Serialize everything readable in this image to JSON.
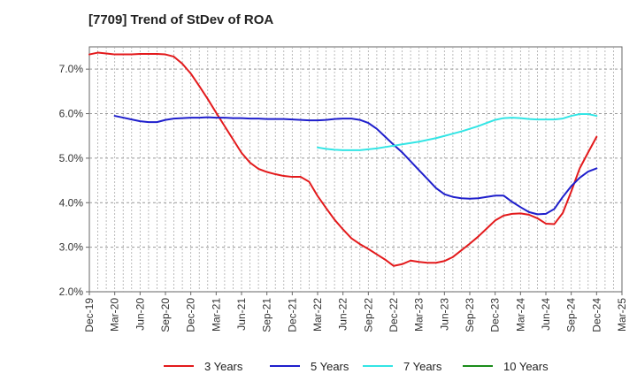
{
  "chart_data": {
    "type": "line",
    "title": "[7709]  Trend of StDev of ROA",
    "xlabel": "",
    "ylabel": "",
    "ylim": [
      2.0,
      7.5
    ],
    "y_ticks": [
      "2.0%",
      "3.0%",
      "4.0%",
      "5.0%",
      "6.0%",
      "7.0%"
    ],
    "x_ticks": [
      "Dec-19",
      "Mar-20",
      "Jun-20",
      "Sep-20",
      "Dec-20",
      "Mar-21",
      "Jun-21",
      "Sep-21",
      "Dec-21",
      "Mar-22",
      "Jun-22",
      "Sep-22",
      "Dec-22",
      "Mar-23",
      "Jun-23",
      "Sep-23",
      "Dec-23",
      "Mar-24",
      "Jun-24",
      "Sep-24",
      "Dec-24",
      "Mar-25"
    ],
    "grid": "vertical dashed and horizontal dashed",
    "legend": "bottom",
    "series": [
      {
        "name": "3 Years",
        "color": "#e31a1c",
        "x": [
          "Dec-19",
          "Jan-20",
          "Feb-20",
          "Mar-20",
          "Apr-20",
          "May-20",
          "Jun-20",
          "Jul-20",
          "Aug-20",
          "Sep-20",
          "Oct-20",
          "Nov-20",
          "Dec-20",
          "Jan-21",
          "Feb-21",
          "Mar-21",
          "Apr-21",
          "May-21",
          "Jun-21",
          "Jul-21",
          "Aug-21",
          "Sep-21",
          "Oct-21",
          "Nov-21",
          "Dec-21",
          "Jan-22",
          "Feb-22",
          "Mar-22",
          "Apr-22",
          "May-22",
          "Jun-22",
          "Jul-22",
          "Aug-22",
          "Sep-22",
          "Oct-22",
          "Nov-22",
          "Dec-22",
          "Jan-23",
          "Feb-23",
          "Mar-23",
          "Apr-23",
          "May-23",
          "Jun-23",
          "Jul-23",
          "Aug-23",
          "Sep-23",
          "Oct-23",
          "Nov-23",
          "Dec-23",
          "Jan-24",
          "Feb-24",
          "Mar-24",
          "Apr-24",
          "May-24",
          "Jun-24",
          "Jul-24",
          "Aug-24",
          "Sep-24",
          "Oct-24",
          "Nov-24",
          "Dec-24"
        ],
        "values": [
          7.33,
          7.37,
          7.35,
          7.33,
          7.33,
          7.33,
          7.34,
          7.34,
          7.34,
          7.33,
          7.28,
          7.12,
          6.9,
          6.62,
          6.33,
          6.02,
          5.72,
          5.42,
          5.12,
          4.9,
          4.76,
          4.69,
          4.64,
          4.6,
          4.58,
          4.58,
          4.47,
          4.15,
          3.88,
          3.62,
          3.4,
          3.2,
          3.07,
          2.96,
          2.84,
          2.72,
          2.58,
          2.62,
          2.7,
          2.67,
          2.65,
          2.65,
          2.69,
          2.78,
          2.93,
          3.08,
          3.24,
          3.42,
          3.6,
          3.71,
          3.75,
          3.76,
          3.73,
          3.65,
          3.53,
          3.52,
          3.77,
          4.25,
          4.77,
          5.13,
          5.48
        ]
      },
      {
        "name": "5 Years",
        "color": "#1f1fcc",
        "x": [
          "Dec-19",
          "Jan-20",
          "Feb-20",
          "Mar-20",
          "Apr-20",
          "May-20",
          "Jun-20",
          "Jul-20",
          "Aug-20",
          "Sep-20",
          "Oct-20",
          "Nov-20",
          "Dec-20",
          "Jan-21",
          "Feb-21",
          "Mar-21",
          "Apr-21",
          "May-21",
          "Jun-21",
          "Jul-21",
          "Aug-21",
          "Sep-21",
          "Oct-21",
          "Nov-21",
          "Dec-21",
          "Jan-22",
          "Feb-22",
          "Mar-22",
          "Apr-22",
          "May-22",
          "Jun-22",
          "Jul-22",
          "Aug-22",
          "Sep-22",
          "Oct-22",
          "Nov-22",
          "Dec-22",
          "Jan-23",
          "Feb-23",
          "Mar-23",
          "Apr-23",
          "May-23",
          "Jun-23",
          "Jul-23",
          "Aug-23",
          "Sep-23",
          "Oct-23",
          "Nov-23",
          "Dec-23",
          "Jan-24",
          "Feb-24",
          "Mar-24",
          "Apr-24",
          "May-24",
          "Jun-24",
          "Jul-24",
          "Aug-24",
          "Sep-24",
          "Oct-24",
          "Nov-24",
          "Dec-24"
        ],
        "values": [
          null,
          null,
          null,
          5.95,
          5.91,
          5.87,
          5.83,
          5.81,
          5.81,
          5.86,
          5.89,
          5.9,
          5.91,
          5.91,
          5.92,
          5.91,
          5.91,
          5.9,
          5.9,
          5.89,
          5.89,
          5.88,
          5.88,
          5.88,
          5.87,
          5.86,
          5.85,
          5.85,
          5.86,
          5.88,
          5.89,
          5.89,
          5.86,
          5.79,
          5.66,
          5.48,
          5.3,
          5.13,
          4.93,
          4.73,
          4.53,
          4.33,
          4.19,
          4.13,
          4.1,
          4.09,
          4.1,
          4.13,
          4.16,
          4.16,
          4.02,
          3.9,
          3.79,
          3.74,
          3.75,
          3.86,
          4.13,
          4.37,
          4.56,
          4.7,
          4.77
        ]
      },
      {
        "name": "7 Years",
        "color": "#33e5e5",
        "x": [
          "Dec-19",
          "Jan-20",
          "Feb-20",
          "Mar-20",
          "Apr-20",
          "May-20",
          "Jun-20",
          "Jul-20",
          "Aug-20",
          "Sep-20",
          "Oct-20",
          "Nov-20",
          "Dec-20",
          "Jan-21",
          "Feb-21",
          "Mar-21",
          "Apr-21",
          "May-21",
          "Jun-21",
          "Jul-21",
          "Aug-21",
          "Sep-21",
          "Oct-21",
          "Nov-21",
          "Dec-21",
          "Jan-22",
          "Feb-22",
          "Mar-22",
          "Apr-22",
          "May-22",
          "Jun-22",
          "Jul-22",
          "Aug-22",
          "Sep-22",
          "Oct-22",
          "Nov-22",
          "Dec-22",
          "Jan-23",
          "Feb-23",
          "Mar-23",
          "Apr-23",
          "May-23",
          "Jun-23",
          "Jul-23",
          "Aug-23",
          "Sep-23",
          "Oct-23",
          "Nov-23",
          "Dec-23",
          "Jan-24",
          "Feb-24",
          "Mar-24",
          "Apr-24",
          "May-24",
          "Jun-24",
          "Jul-24",
          "Aug-24",
          "Sep-24",
          "Oct-24",
          "Nov-24",
          "Dec-24"
        ],
        "values": [
          null,
          null,
          null,
          null,
          null,
          null,
          null,
          null,
          null,
          null,
          null,
          null,
          null,
          null,
          null,
          null,
          null,
          null,
          null,
          null,
          null,
          null,
          null,
          null,
          null,
          null,
          null,
          5.24,
          5.21,
          5.19,
          5.18,
          5.18,
          5.18,
          5.2,
          5.22,
          5.25,
          5.28,
          5.31,
          5.34,
          5.37,
          5.41,
          5.45,
          5.5,
          5.55,
          5.6,
          5.66,
          5.72,
          5.79,
          5.86,
          5.9,
          5.91,
          5.9,
          5.88,
          5.87,
          5.87,
          5.87,
          5.89,
          5.95,
          5.99,
          5.99,
          5.95
        ]
      },
      {
        "name": "10 Years",
        "color": "#1a8c1a",
        "x": [],
        "values": []
      }
    ]
  }
}
